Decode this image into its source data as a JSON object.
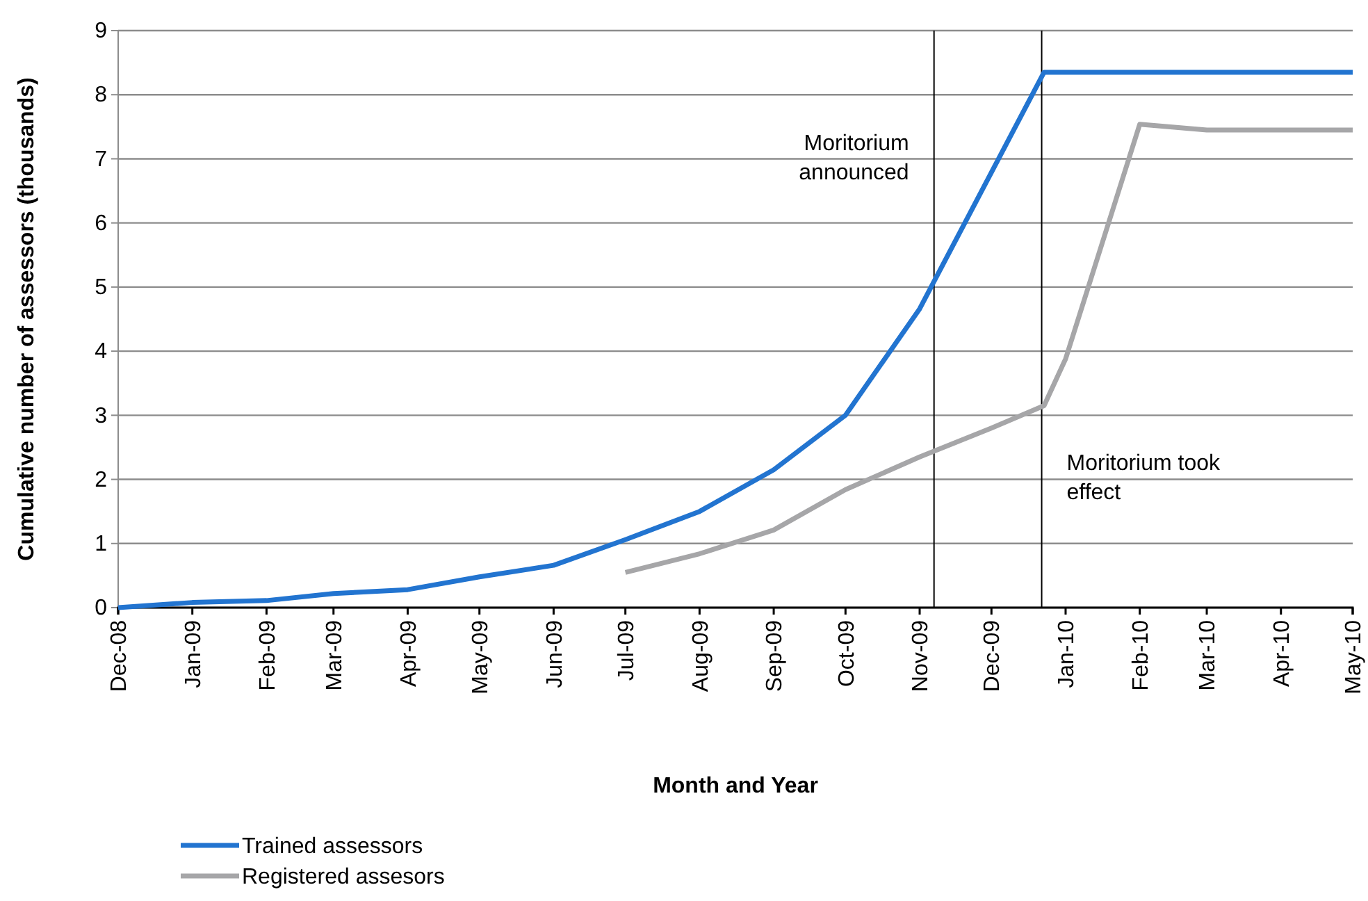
{
  "chart_data": {
    "type": "line",
    "xlabel": "Month and Year",
    "ylabel": "Cumulative number of assessors (thousands)",
    "xlim": [
      "2008-12",
      "2010-05"
    ],
    "xticks": [
      {
        "value": "2008-12",
        "label": "Dec-08"
      },
      {
        "value": "2009-01",
        "label": "Jan-09"
      },
      {
        "value": "2009-02",
        "label": "Feb-09"
      },
      {
        "value": "2009-03",
        "label": "Mar-09"
      },
      {
        "value": "2009-04",
        "label": "Apr-09"
      },
      {
        "value": "2009-05",
        "label": "May-09"
      },
      {
        "value": "2009-06",
        "label": "Jun-09"
      },
      {
        "value": "2009-07",
        "label": "Jul-09"
      },
      {
        "value": "2009-08",
        "label": "Aug-09"
      },
      {
        "value": "2009-09",
        "label": "Sep-09"
      },
      {
        "value": "2009-10",
        "label": "Oct-09"
      },
      {
        "value": "2009-11",
        "label": "Nov-09"
      },
      {
        "value": "2009-12",
        "label": "Dec-09"
      },
      {
        "value": "2010-01",
        "label": "Jan-10"
      },
      {
        "value": "2010-02",
        "label": "Feb-10"
      },
      {
        "value": "2010-03",
        "label": "Mar-10"
      },
      {
        "value": "2010-04",
        "label": "Apr-10"
      },
      {
        "value": "2010-05",
        "label": "May-10"
      }
    ],
    "ylim": [
      0,
      9
    ],
    "yticks": [
      0,
      1,
      2,
      3,
      4,
      5,
      6,
      7,
      8,
      9
    ],
    "grid": "y",
    "legend": "bottom left",
    "marker": "none",
    "line_style": "solid",
    "series": [
      {
        "name": "Trained assessors",
        "color": "#2274d0",
        "x": [
          "2008-12",
          "2009-01",
          "2009-02",
          "2009-03",
          "2009-04",
          "2009-05",
          "2009-06",
          "2009-07",
          "2009-08",
          "2009-09",
          "2009-10",
          "2009-11",
          "2009-12-23",
          "2010-01",
          "2010-02",
          "2010-03",
          "2010-04",
          "2010-05"
        ],
        "values": [
          0,
          0.08,
          0.11,
          0.22,
          0.28,
          0.48,
          0.66,
          1.06,
          1.5,
          2.15,
          3.0,
          4.66,
          8.35,
          8.35,
          8.35,
          8.35,
          8.35,
          8.35
        ]
      },
      {
        "name": "Registered assesors",
        "color": "#a6a6a8",
        "x": [
          "2009-07",
          "2009-08",
          "2009-09",
          "2009-10",
          "2009-11",
          "2009-12",
          "2009-12-23",
          "2010-01",
          "2010-02",
          "2010-03",
          "2010-04",
          "2010-05"
        ],
        "values": [
          0.55,
          0.84,
          1.21,
          1.84,
          2.35,
          2.8,
          3.15,
          3.88,
          7.54,
          7.45,
          7.45,
          7.45
        ]
      }
    ],
    "ref_lines": [
      {
        "axis": "x",
        "value": "2009-11-07",
        "label": "Moritorium announced",
        "color": "#000000"
      },
      {
        "axis": "x",
        "value": "2009-12-22",
        "label": "Moritorium took effect",
        "color": "#000000"
      }
    ]
  }
}
